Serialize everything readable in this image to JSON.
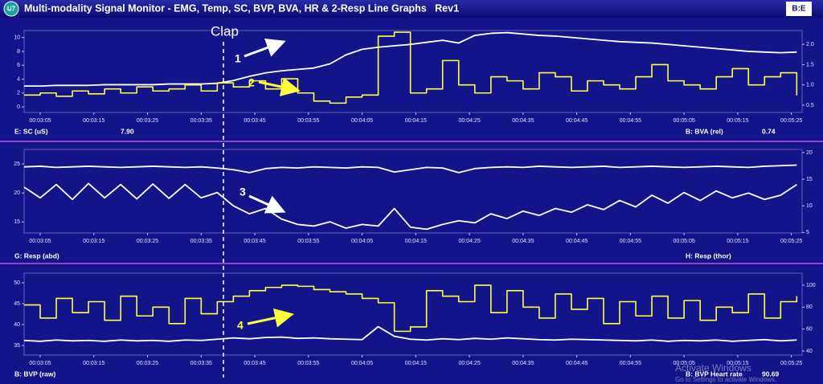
{
  "window": {
    "badge": "U7",
    "title": "Multi-modality Signal Monitor - EMG, Temp, SC, BVP, BVA, HR & 2-Resp Line Graphs   Rev1",
    "logo": "B:E"
  },
  "annotations": [
    "Clap",
    "1",
    "2",
    "3",
    "4"
  ],
  "watermark": {
    "title": "Activate Windows",
    "subtitle": "Go to Settings to activate Windows."
  },
  "chart_data": [
    {
      "type": "line",
      "xlim": [
        182,
        327
      ],
      "xticks": [
        {
          "value": 185,
          "label": "00:03:05"
        },
        {
          "value": 195,
          "label": "00:03:15"
        },
        {
          "value": 205,
          "label": "00:03:25"
        },
        {
          "value": 215,
          "label": "00:03:35"
        },
        {
          "value": 225,
          "label": "00:03:45"
        },
        {
          "value": 235,
          "label": "00:03:55"
        },
        {
          "value": 245,
          "label": "00:04:05"
        },
        {
          "value": 255,
          "label": "00:04:15"
        },
        {
          "value": 265,
          "label": "00:04:25"
        },
        {
          "value": 275,
          "label": "00:04:35"
        },
        {
          "value": 285,
          "label": "00:04:45"
        },
        {
          "value": 295,
          "label": "00:04:55"
        },
        {
          "value": 305,
          "label": "00:05:05"
        },
        {
          "value": 315,
          "label": "00:05:15"
        },
        {
          "value": 325,
          "label": "00:05:25"
        }
      ],
      "ylim": [
        -0.8,
        11
      ],
      "yticks": [
        0,
        2,
        4,
        6,
        8,
        10
      ],
      "y2lim": [
        0.32,
        2.34
      ],
      "y2ticks": [
        0.5,
        {
          "value": 1,
          "label": "1.0"
        },
        1.5,
        {
          "value": 2,
          "label": "2.0"
        }
      ],
      "x": [
        182,
        185,
        188,
        191,
        194,
        197,
        200,
        203,
        206,
        209,
        212,
        215,
        218,
        221,
        224,
        227,
        230,
        233,
        236,
        239,
        242,
        245,
        248,
        251,
        254,
        257,
        260,
        263,
        266,
        269,
        272,
        275,
        278,
        281,
        284,
        287,
        290,
        293,
        296,
        299,
        302,
        305,
        308,
        311,
        314,
        317,
        320,
        323,
        326
      ],
      "series": [
        {
          "name": "E: SC (uS)",
          "color": "#ffffff",
          "values": [
            3.0,
            3.0,
            3.1,
            3.1,
            3.1,
            3.2,
            3.2,
            3.2,
            3.2,
            3.3,
            3.3,
            3.3,
            3.4,
            3.8,
            4.4,
            4.9,
            5.2,
            5.4,
            5.6,
            6.2,
            7.5,
            8.3,
            8.6,
            8.8,
            9.0,
            9.3,
            9.6,
            9.2,
            10.3,
            10.6,
            10.7,
            10.5,
            10.3,
            10.2,
            10.0,
            9.8,
            9.6,
            9.4,
            9.3,
            9.2,
            9.0,
            8.8,
            8.6,
            8.4,
            8.2,
            8.0,
            7.9,
            7.8,
            7.9
          ]
        },
        {
          "name": "B: BVA (rel)",
          "color": "#ffff40",
          "axis": "y2",
          "step": true,
          "values": [
            0.75,
            0.8,
            0.72,
            0.85,
            0.78,
            0.9,
            0.8,
            0.95,
            0.85,
            0.9,
            1.0,
            0.85,
            1.05,
            0.95,
            1.1,
            0.9,
            1.15,
            0.8,
            0.6,
            0.55,
            0.7,
            0.75,
            2.2,
            2.3,
            0.8,
            0.9,
            1.6,
            1.0,
            0.8,
            1.2,
            1.1,
            0.9,
            1.3,
            1.2,
            0.85,
            1.1,
            1.0,
            0.9,
            1.2,
            1.5,
            1.1,
            1.0,
            0.9,
            1.2,
            1.4,
            1.0,
            1.2,
            1.3,
            0.74
          ]
        }
      ],
      "readouts": [
        "7.90",
        "0.74"
      ]
    },
    {
      "type": "line",
      "xlim": [
        182,
        327
      ],
      "xticks": [
        {
          "value": 185,
          "label": "00:03:05"
        },
        {
          "value": 195,
          "label": "00:03:15"
        },
        {
          "value": 205,
          "label": "00:03:25"
        },
        {
          "value": 215,
          "label": "00:03:35"
        },
        {
          "value": 225,
          "label": "00:03:45"
        },
        {
          "value": 235,
          "label": "00:03:55"
        },
        {
          "value": 245,
          "label": "00:04:05"
        },
        {
          "value": 255,
          "label": "00:04:15"
        },
        {
          "value": 265,
          "label": "00:04:25"
        },
        {
          "value": 275,
          "label": "00:04:35"
        },
        {
          "value": 285,
          "label": "00:04:45"
        },
        {
          "value": 295,
          "label": "00:04:55"
        },
        {
          "value": 305,
          "label": "00:05:05"
        },
        {
          "value": 315,
          "label": "00:05:15"
        },
        {
          "value": 325,
          "label": "00:05:25"
        }
      ],
      "ylim": [
        13.1,
        27.5
      ],
      "yticks": [
        15,
        20,
        25
      ],
      "y2lim": [
        4.9,
        20.6
      ],
      "y2ticks": [
        5,
        10,
        15,
        20
      ],
      "x": [
        182,
        185,
        188,
        191,
        194,
        197,
        200,
        203,
        206,
        209,
        212,
        215,
        218,
        221,
        224,
        227,
        230,
        233,
        236,
        239,
        242,
        245,
        248,
        251,
        254,
        257,
        260,
        263,
        266,
        269,
        272,
        275,
        278,
        281,
        284,
        287,
        290,
        293,
        296,
        299,
        302,
        305,
        308,
        311,
        314,
        317,
        320,
        323,
        326
      ],
      "series": [
        {
          "name": "G: Resp (abd)",
          "color": "#ffffff",
          "values": [
            24.5,
            24.6,
            24.4,
            24.5,
            24.6,
            24.5,
            24.4,
            24.5,
            24.6,
            24.5,
            24.4,
            24.5,
            24.3,
            24.0,
            23.5,
            24.2,
            24.4,
            24.3,
            24.5,
            24.4,
            24.3,
            24.5,
            24.4,
            23.6,
            24.0,
            24.4,
            24.3,
            23.5,
            24.2,
            24.4,
            24.5,
            24.4,
            24.6,
            24.5,
            24.4,
            24.5,
            24.6,
            24.4,
            24.5,
            24.6,
            24.5,
            24.4,
            24.5,
            24.6,
            24.5,
            24.4,
            24.6,
            24.7,
            24.8
          ]
        },
        {
          "name": "H: Resp (thor)",
          "color": "#ffffff",
          "axis": "y2",
          "values": [
            13.5,
            11.5,
            14.0,
            11.2,
            14.2,
            11.5,
            14.0,
            11.3,
            14.1,
            11.4,
            14.0,
            11.5,
            12.5,
            10.0,
            8.5,
            9.5,
            7.5,
            6.5,
            6.2,
            7.0,
            5.8,
            6.5,
            6.2,
            9.5,
            6.0,
            5.6,
            6.5,
            7.2,
            6.8,
            8.5,
            7.6,
            9.0,
            8.2,
            9.5,
            8.8,
            10.2,
            9.3,
            11.0,
            9.8,
            12.0,
            10.5,
            12.5,
            11.0,
            12.8,
            11.5,
            12.4,
            11.2,
            12.0,
            14.0
          ]
        }
      ]
    },
    {
      "type": "line",
      "xlim": [
        182,
        327
      ],
      "xticks": [
        {
          "value": 185,
          "label": "00:03:05"
        },
        {
          "value": 195,
          "label": "00:03:15"
        },
        {
          "value": 205,
          "label": "00:03:25"
        },
        {
          "value": 215,
          "label": "00:03:35"
        },
        {
          "value": 225,
          "label": "00:03:45"
        },
        {
          "value": 235,
          "label": "00:03:55"
        },
        {
          "value": 245,
          "label": "00:04:05"
        },
        {
          "value": 255,
          "label": "00:04:15"
        },
        {
          "value": 265,
          "label": "00:04:25"
        },
        {
          "value": 275,
          "label": "00:04:35"
        },
        {
          "value": 285,
          "label": "00:04:45"
        },
        {
          "value": 295,
          "label": "00:04:55"
        },
        {
          "value": 305,
          "label": "00:05:05"
        },
        {
          "value": 315,
          "label": "00:05:15"
        },
        {
          "value": 325,
          "label": "00:05:25"
        }
      ],
      "ylim": [
        32.7,
        52.3
      ],
      "yticks": [
        35,
        40,
        45,
        50
      ],
      "y2lim": [
        36.3,
        111
      ],
      "y2ticks": [
        40,
        60,
        80,
        100
      ],
      "x": [
        182,
        185,
        188,
        191,
        194,
        197,
        200,
        203,
        206,
        209,
        212,
        215,
        218,
        221,
        224,
        227,
        230,
        233,
        236,
        239,
        242,
        245,
        248,
        251,
        254,
        257,
        260,
        263,
        266,
        269,
        272,
        275,
        278,
        281,
        284,
        287,
        290,
        293,
        296,
        299,
        302,
        305,
        308,
        311,
        314,
        317,
        320,
        323,
        326
      ],
      "series": [
        {
          "name": "B: BVP (raw)",
          "color": "#ffffff",
          "values": [
            36.2,
            36.0,
            36.3,
            36.1,
            36.2,
            36.0,
            36.3,
            36.1,
            36.2,
            36.0,
            36.3,
            36.2,
            36.5,
            36.8,
            36.6,
            36.9,
            37.0,
            36.7,
            36.8,
            36.6,
            36.5,
            36.4,
            39.5,
            37.2,
            36.5,
            36.3,
            36.6,
            36.4,
            36.7,
            36.5,
            36.8,
            36.6,
            36.4,
            36.3,
            36.5,
            36.4,
            36.3,
            36.2,
            36.1,
            36.3,
            36.0,
            36.2,
            36.1,
            36.3,
            36.0,
            36.2,
            36.4,
            36.1,
            36.3
          ]
        },
        {
          "name": "B: BVP Heart rate",
          "color": "#ffff40",
          "axis": "y2",
          "step": true,
          "values": [
            82,
            70,
            88,
            75,
            85,
            68,
            90,
            72,
            80,
            65,
            88,
            74,
            85,
            90,
            95,
            98,
            100,
            99,
            96,
            94,
            92,
            88,
            84,
            58,
            62,
            95,
            90,
            85,
            100,
            75,
            95,
            80,
            70,
            92,
            78,
            88,
            65,
            85,
            72,
            90,
            70,
            86,
            68,
            80,
            75,
            92,
            70,
            85,
            90
          ]
        }
      ],
      "readouts": [
        "90.69"
      ]
    }
  ]
}
